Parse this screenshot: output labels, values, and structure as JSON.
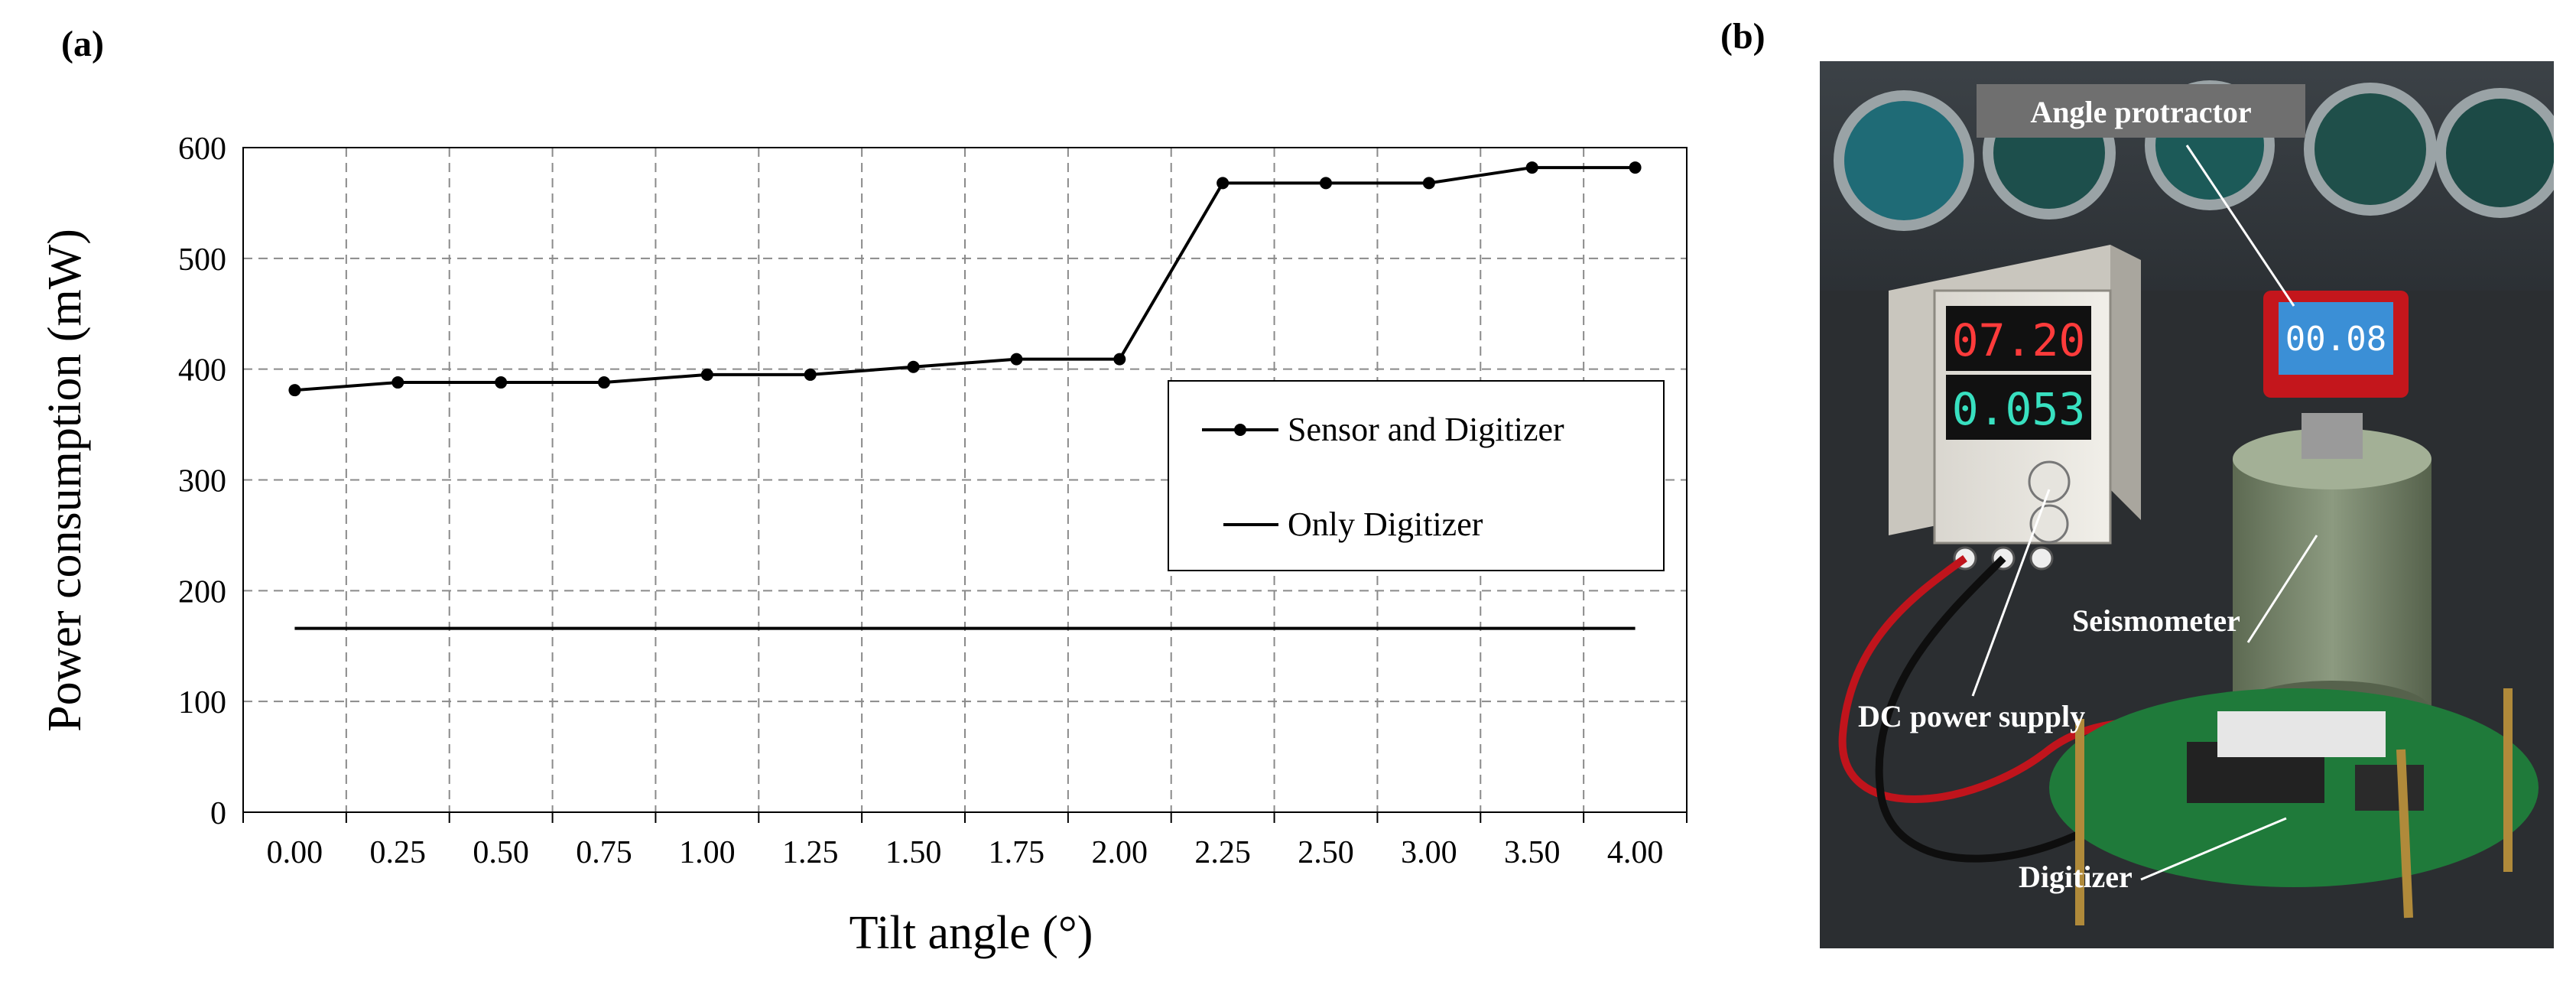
{
  "panel_a": {
    "label": "(a)"
  },
  "panel_b": {
    "label": "(b)",
    "photo_labels": {
      "angle_protractor": "Angle protractor",
      "seismometer": "Seismometer",
      "dc_power_supply": "DC power supply",
      "digitizer": "Digitizer"
    },
    "psu_readout": {
      "voltage": "07.20",
      "current": "0.053"
    },
    "protractor_readout": "00.08"
  },
  "chart_data": {
    "type": "line",
    "title": "",
    "xlabel": "Tilt angle (°)",
    "ylabel": "Power consumption (mW)",
    "ylim": [
      0,
      600
    ],
    "yticks": [
      "0",
      "100",
      "200",
      "300",
      "400",
      "500",
      "600"
    ],
    "categories": [
      "0.00",
      "0.25",
      "0.50",
      "0.75",
      "1.00",
      "1.25",
      "1.50",
      "1.75",
      "2.00",
      "2.25",
      "2.50",
      "3.00",
      "3.50",
      "4.00"
    ],
    "grid": true,
    "legend": "center-right",
    "series": [
      {
        "name": "Sensor and Digitizer",
        "markers": true,
        "color": "#000000",
        "values": [
          381,
          388,
          388,
          388,
          395,
          395,
          402,
          409,
          409,
          568,
          568,
          568,
          582,
          582
        ]
      },
      {
        "name": "Only Digitizer",
        "markers": false,
        "color": "#000000",
        "values": [
          166,
          166,
          166,
          166,
          166,
          166,
          166,
          166,
          166,
          166,
          166,
          166,
          166,
          166
        ]
      }
    ]
  }
}
